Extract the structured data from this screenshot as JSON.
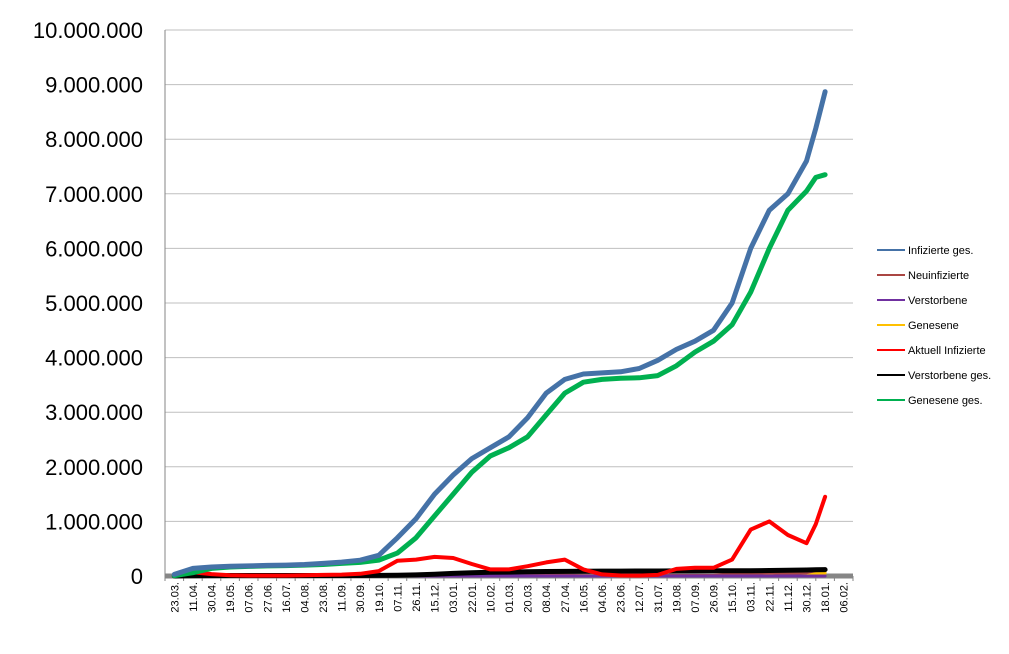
{
  "chart_data": {
    "type": "line",
    "title": "",
    "xlabel": "",
    "ylabel": "",
    "ylim": [
      0,
      10000000
    ],
    "y_ticks": [
      0,
      1000000,
      2000000,
      3000000,
      4000000,
      5000000,
      6000000,
      7000000,
      8000000,
      9000000,
      10000000
    ],
    "y_tick_labels": [
      "0",
      "1.000.000",
      "2.000.000",
      "3.000.000",
      "4.000.000",
      "5.000.000",
      "6.000.000",
      "7.000.000",
      "8.000.000",
      "9.000.000",
      "10.000.000"
    ],
    "x_tick_labels": [
      "23.03.",
      "11.04.",
      "30.04.",
      "19.05.",
      "07.06.",
      "27.06.",
      "16.07.",
      "04.08.",
      "23.08.",
      "11.09.",
      "30.09.",
      "19.10.",
      "07.11.",
      "26.11.",
      "15.12.",
      "03.01.",
      "22.01.",
      "10.02.",
      "01.03.",
      "20.03.",
      "08.04.",
      "27.04.",
      "16.05.",
      "04.06.",
      "23.06.",
      "12.07.",
      "31.07.",
      "19.08.",
      "07.09.",
      "26.09.",
      "15.10.",
      "03.11.",
      "22.11.",
      "11.12.",
      "30.12.",
      "18.01.",
      "06.02."
    ],
    "grid": "horizontal",
    "legend": "right",
    "x_index": [
      0,
      1,
      2,
      3,
      4,
      5,
      6,
      7,
      8,
      9,
      10,
      11,
      12,
      13,
      14,
      15,
      16,
      17,
      18,
      19,
      20,
      21,
      22,
      23,
      24,
      25,
      26,
      27,
      28,
      29,
      30,
      31,
      32,
      33,
      34,
      34.5,
      35,
      35.5
    ],
    "series": [
      {
        "name": "Infizierte ges.",
        "color": "#4572A7",
        "values": [
          30000,
          140000,
          165000,
          180000,
          185000,
          195000,
          200000,
          210000,
          230000,
          255000,
          290000,
          380000,
          700000,
          1050000,
          1500000,
          1850000,
          2150000,
          2350000,
          2550000,
          2900000,
          3350000,
          3600000,
          3700000,
          3720000,
          3740000,
          3800000,
          3950000,
          4150000,
          4300000,
          4500000,
          5000000,
          6000000,
          6700000,
          7000000,
          7600000,
          8200000,
          8870000,
          null
        ]
      },
      {
        "name": "Neuinfizierte",
        "color": "#AA4643",
        "values": [
          1000,
          3000,
          1500,
          700,
          400,
          400,
          700,
          1500,
          1500,
          2000,
          5000,
          12000,
          18000,
          19000,
          24000,
          18000,
          10000,
          8000,
          10000,
          18000,
          20000,
          12000,
          3000,
          700,
          500,
          800,
          9000,
          11000,
          10000,
          15000,
          40000,
          45000,
          60000,
          45000,
          60000,
          100000,
          130000,
          null
        ]
      },
      {
        "name": "Verstorbene",
        "color": "#7030A0",
        "values": [
          20,
          200,
          150,
          60,
          20,
          10,
          10,
          10,
          10,
          10,
          30,
          100,
          200,
          350,
          600,
          700,
          400,
          250,
          200,
          150,
          200,
          150,
          60,
          20,
          10,
          10,
          10,
          30,
          30,
          40,
          50,
          150,
          250,
          200,
          150,
          200,
          250,
          null
        ]
      },
      {
        "name": "Genesene",
        "color": "#FFC000",
        "values": [
          500,
          5000,
          3000,
          1500,
          600,
          400,
          500,
          1000,
          1500,
          2000,
          3000,
          9000,
          15000,
          18000,
          22000,
          20000,
          12000,
          9000,
          9000,
          14000,
          18000,
          15000,
          6000,
          1500,
          600,
          500,
          4000,
          9000,
          10000,
          10000,
          20000,
          30000,
          45000,
          45000,
          40000,
          45000,
          55000,
          null
        ]
      },
      {
        "name": "Aktuell Infizierte",
        "color": "#FF0000",
        "values": [
          25000,
          70000,
          35000,
          15000,
          8000,
          7000,
          8000,
          12000,
          20000,
          25000,
          40000,
          90000,
          280000,
          300000,
          350000,
          330000,
          220000,
          120000,
          120000,
          180000,
          250000,
          300000,
          120000,
          30000,
          10000,
          8000,
          20000,
          130000,
          150000,
          150000,
          300000,
          850000,
          1000000,
          750000,
          600000,
          950000,
          1450000,
          null
        ]
      },
      {
        "name": "Verstorbene ges.",
        "color": "#000000",
        "values": [
          500,
          4000,
          8000,
          8500,
          9000,
          9000,
          9000,
          9200,
          9300,
          9400,
          9600,
          10500,
          13000,
          20000,
          33000,
          48000,
          60000,
          68000,
          71000,
          77000,
          82000,
          85000,
          88000,
          90000,
          90000,
          91000,
          92000,
          93000,
          94000,
          95000,
          96000,
          97000,
          100000,
          105000,
          110000,
          115000,
          118000,
          null
        ]
      },
      {
        "name": "Genesene ges.",
        "color": "#00B050",
        "values": [
          5000,
          60000,
          140000,
          165000,
          175000,
          185000,
          190000,
          200000,
          210000,
          230000,
          250000,
          290000,
          420000,
          700000,
          1100000,
          1500000,
          1900000,
          2200000,
          2350000,
          2550000,
          2950000,
          3350000,
          3550000,
          3600000,
          3620000,
          3630000,
          3670000,
          3850000,
          4100000,
          4300000,
          4600000,
          5200000,
          6000000,
          6700000,
          7050000,
          7300000,
          7350000,
          null
        ]
      }
    ]
  }
}
